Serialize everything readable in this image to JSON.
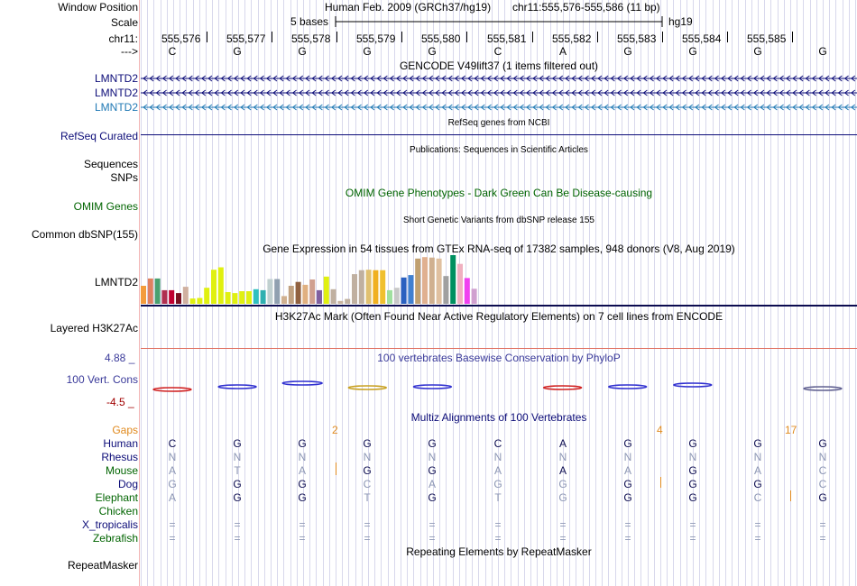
{
  "window_position": {
    "label": "Window Position",
    "assembly": "Human Feb. 2009 (GRCh37/hg19)",
    "coords": "chr11:555,576-555,586 (11 bp)"
  },
  "scale": {
    "label": "Scale",
    "bar_label": "5 bases",
    "db": "hg19"
  },
  "ruler": {
    "label": "chr11:",
    "ticks": [
      "555,576",
      "555,577",
      "555,578",
      "555,579",
      "555,580",
      "555,581",
      "555,582",
      "555,583",
      "555,584",
      "555,585"
    ]
  },
  "bases": {
    "label": "--->",
    "values": [
      "C",
      "G",
      "G",
      "G",
      "G",
      "C",
      "A",
      "G",
      "G",
      "G",
      "G"
    ]
  },
  "gencode": {
    "title": "GENCODE V49lift37 (1 items filtered out)",
    "tracks": [
      {
        "name": "LMNTD2",
        "color": "#0c0c78"
      },
      {
        "name": "LMNTD2",
        "color": "#0c0c78"
      },
      {
        "name": "LMNTD2",
        "color": "#1f78b4"
      }
    ]
  },
  "refseq": {
    "title": "RefSeq genes from NCBI",
    "label": "RefSeq Curated",
    "color": "#0c0c78"
  },
  "publications": {
    "title": "Publications: Sequences in Scientific Articles",
    "labels": [
      "Sequences",
      "SNPs"
    ]
  },
  "omim": {
    "title": "OMIM Gene Phenotypes - Dark Green Can Be Disease-causing",
    "label": "OMIM Genes",
    "color": "#006400"
  },
  "dbsnp": {
    "title": "Short Genetic Variants from dbSNP release 155",
    "label": "Common dbSNP(155)"
  },
  "gtex": {
    "title": "Gene Expression in 54 tissues from GTEx RNA-seq of 17382 samples, 948 donors (V8, Aug 2019)",
    "label": "LMNTD2",
    "levels": [
      0.37,
      0.52,
      0.52,
      0.28,
      0.28,
      0.22,
      0.35,
      0.11,
      0.12,
      0.33,
      0.7,
      0.75,
      0.24,
      0.22,
      0.26,
      0.26,
      0.3,
      0.28,
      0.51,
      0.51,
      0.16,
      0.37,
      0.45,
      0.39,
      0.5,
      0.28,
      0.56,
      0.3,
      0.06,
      0.1,
      0.61,
      0.69,
      0.7,
      0.69,
      0.69,
      0.28,
      0.33,
      0.54,
      0.59,
      0.93,
      0.96,
      0.95,
      0.93,
      0.57,
      1.0,
      0.82,
      0.53,
      0.31
    ],
    "colors": [
      "#f39c3c",
      "#e08060",
      "#4aa070",
      "#b03050",
      "#c00030",
      "#7a1020",
      "#d0b0a0",
      "#e0f010",
      "#e0f010",
      "#e0f010",
      "#e0f010",
      "#e0f010",
      "#e0f010",
      "#e0f010",
      "#e0f010",
      "#e0f010",
      "#30c0c0",
      "#30b0b0",
      "#c0d0d0",
      "#90a0b0",
      "#d0b090",
      "#c0a080",
      "#906040",
      "#e0b080",
      "#d0a090",
      "#8060a0",
      "#e0f010",
      "#c0b0a0",
      "#c8b4a0",
      "#c0b0a0",
      "#c0b0a0",
      "#c0b0a0",
      "#e0c070",
      "#f0b020",
      "#f0c030",
      "#a0e0a0",
      "#c8c8c8",
      "#2a60c0",
      "#4080d0",
      "#c0a070",
      "#e0b090",
      "#d0b090",
      "#e0c0a0",
      "#a0a0a0",
      "#009060",
      "#f0b0c0",
      "#f040f0",
      "#d0a0d0"
    ]
  },
  "h3k27ac": {
    "title": "H3K27Ac Mark (Often Found Near Active Regulatory Elements) on 7 cell lines from ENCODE",
    "label": "Layered H3K27Ac"
  },
  "phylop": {
    "title": "100 vertebrates Basewise Conservation by PhyloP",
    "label": "100 Vert. Cons",
    "ymax": "4.88 _",
    "ymin": "-4.5 _",
    "color": "#3a3a9a"
  },
  "multiz": {
    "title": "Multiz Alignments of 100 Vertebrates",
    "gaps_label": "Gaps",
    "gap_counts": [
      "2",
      "4",
      "17"
    ],
    "species": [
      {
        "name": "Human",
        "color": "#0c0c78",
        "bases": [
          "C",
          "G",
          "G",
          "G",
          "G",
          "C",
          "A",
          "G",
          "G",
          "G",
          "G"
        ],
        "match": [
          1,
          1,
          1,
          1,
          1,
          1,
          1,
          1,
          1,
          1,
          1
        ]
      },
      {
        "name": "Rhesus",
        "color": "#0c0c78",
        "bases": [
          "N",
          "N",
          "N",
          "N",
          "N",
          "N",
          "N",
          "N",
          "N",
          "N",
          "N"
        ],
        "match": [
          0,
          0,
          0,
          0,
          0,
          0,
          0,
          0,
          0,
          0,
          0
        ]
      },
      {
        "name": "Mouse",
        "color": "#006400",
        "bases": [
          "A",
          "T",
          "A",
          "G",
          "G",
          "A",
          "A",
          "A",
          "G",
          "A",
          "C"
        ],
        "match": [
          0,
          0,
          0,
          1,
          1,
          0,
          1,
          0,
          1,
          0,
          0
        ]
      },
      {
        "name": "Dog",
        "color": "#0c0c78",
        "bases": [
          "G",
          "G",
          "G",
          "C",
          "A",
          "G",
          "G",
          "G",
          "G",
          "G",
          "C"
        ],
        "match": [
          0,
          1,
          1,
          0,
          0,
          0,
          0,
          1,
          1,
          1,
          0
        ]
      },
      {
        "name": "Elephant",
        "color": "#006400",
        "bases": [
          "A",
          "G",
          "G",
          "T",
          "G",
          "T",
          "G",
          "G",
          "G",
          "C",
          "G"
        ],
        "match": [
          0,
          1,
          1,
          0,
          1,
          0,
          0,
          1,
          1,
          0,
          1
        ]
      },
      {
        "name": "Chicken",
        "color": "#006400",
        "bases": [
          "",
          "",
          "",
          "",
          "",
          "",
          "",
          "",
          "",
          "",
          ""
        ],
        "match": [
          0,
          0,
          0,
          0,
          0,
          0,
          0,
          0,
          0,
          0,
          0
        ]
      },
      {
        "name": "X_tropicalis",
        "color": "#0c0c78",
        "bases": [
          "=",
          "=",
          "=",
          "=",
          "=",
          "=",
          "=",
          "=",
          "=",
          "=",
          "="
        ],
        "match": [
          0,
          0,
          0,
          0,
          0,
          0,
          0,
          0,
          0,
          0,
          0
        ]
      },
      {
        "name": "Zebrafish",
        "color": "#006400",
        "bases": [
          "=",
          "=",
          "=",
          "=",
          "=",
          "=",
          "=",
          "=",
          "=",
          "=",
          "="
        ],
        "match": [
          0,
          0,
          0,
          0,
          0,
          0,
          0,
          0,
          0,
          0,
          0
        ]
      }
    ]
  },
  "repeatmasker": {
    "title": "Repeating Elements by RepeatMasker",
    "label": "RepeatMasker"
  }
}
